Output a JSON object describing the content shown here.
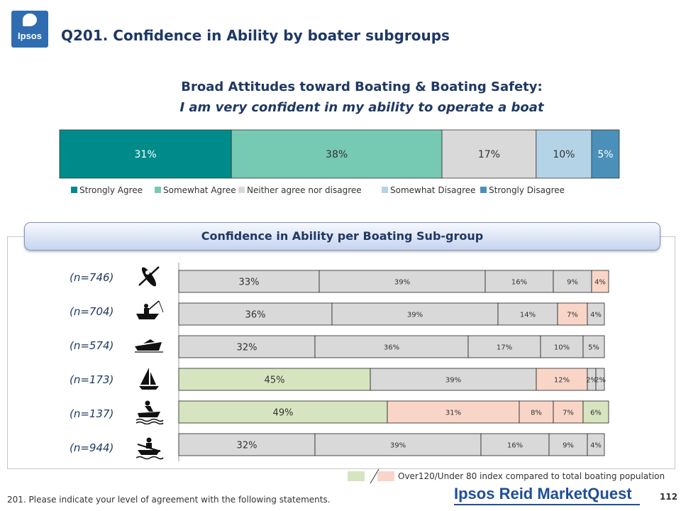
{
  "header": {
    "logo_text": "Ipsos",
    "title": "Q201. Confidence in Ability  by boater subgroups"
  },
  "chart_data": [
    {
      "type": "stacked-bar-horizontal",
      "title": "Broad Attitudes toward Boating & Boating Safety:",
      "subtitle": "I am very confident in my ability to operate a boat",
      "categories": [
        "Strongly Agree",
        "Somewhat Agree",
        "Neither agree nor disagree",
        "Somewhat Disagree",
        "Strongly Disagree"
      ],
      "values": [
        31,
        38,
        17,
        10,
        5
      ],
      "labels": [
        "31%",
        "38%",
        "17%",
        "10%",
        "5%"
      ],
      "colors": [
        "#008b8b",
        "#76c9b2",
        "#d9d9d9",
        "#b4d3e6",
        "#4a90b8"
      ],
      "legend_position": "bottom"
    },
    {
      "type": "stacked-bar-horizontal",
      "title": "Confidence in Ability per Boating Sub-group",
      "rows": [
        {
          "n": "(n=746)",
          "icon": "kayak-icon",
          "values": [
            33,
            39,
            16,
            9,
            4
          ],
          "labels": [
            "33%",
            "39%",
            "16%",
            "9%",
            "4%"
          ],
          "highlight": [
            "none",
            "none",
            "none",
            "none",
            "pink"
          ]
        },
        {
          "n": "(n=704)",
          "icon": "fishing-boat-icon",
          "values": [
            36,
            39,
            14,
            7,
            4
          ],
          "labels": [
            "36%",
            "39%",
            "14%",
            "7%",
            "4%"
          ],
          "highlight": [
            "none",
            "none",
            "none",
            "pink",
            "none"
          ]
        },
        {
          "n": "(n=574)",
          "icon": "powerboat-icon",
          "values": [
            32,
            36,
            17,
            10,
            5
          ],
          "labels": [
            "32%",
            "36%",
            "17%",
            "10%",
            "5%"
          ],
          "highlight": [
            "none",
            "none",
            "none",
            "none",
            "none"
          ]
        },
        {
          "n": "(n=173)",
          "icon": "sailboat-icon",
          "values": [
            45,
            39,
            12,
            2,
            2
          ],
          "labels": [
            "45%",
            "39%",
            "12%",
            "2%",
            "2%"
          ],
          "highlight": [
            "green",
            "none",
            "pink",
            "none",
            "none"
          ]
        },
        {
          "n": "(n=137)",
          "icon": "personal-watercraft-icon",
          "values": [
            49,
            31,
            8,
            7,
            6
          ],
          "labels": [
            "49%",
            "31%",
            "8%",
            "7%",
            "6%"
          ],
          "highlight": [
            "green",
            "pink",
            "pink",
            "pink",
            "green"
          ]
        },
        {
          "n": "(n=944)",
          "icon": "rowboat-icon",
          "values": [
            32,
            39,
            16,
            9,
            4
          ],
          "labels": [
            "32%",
            "39%",
            "16%",
            "9%",
            "4%"
          ],
          "highlight": [
            "none",
            "none",
            "none",
            "none",
            "none"
          ]
        }
      ],
      "highlight_colors": {
        "none": "#d9d9d9",
        "green": "#d6e5c0",
        "pink": "#f9d5c8"
      }
    }
  ],
  "legend_note": "Over120/Under 80 index compared to total boating population",
  "footer": {
    "footnote": "201. Please indicate your level of agreement with the following statements.",
    "brand": "Ipsos Reid MarketQuest",
    "page_number": "112"
  }
}
